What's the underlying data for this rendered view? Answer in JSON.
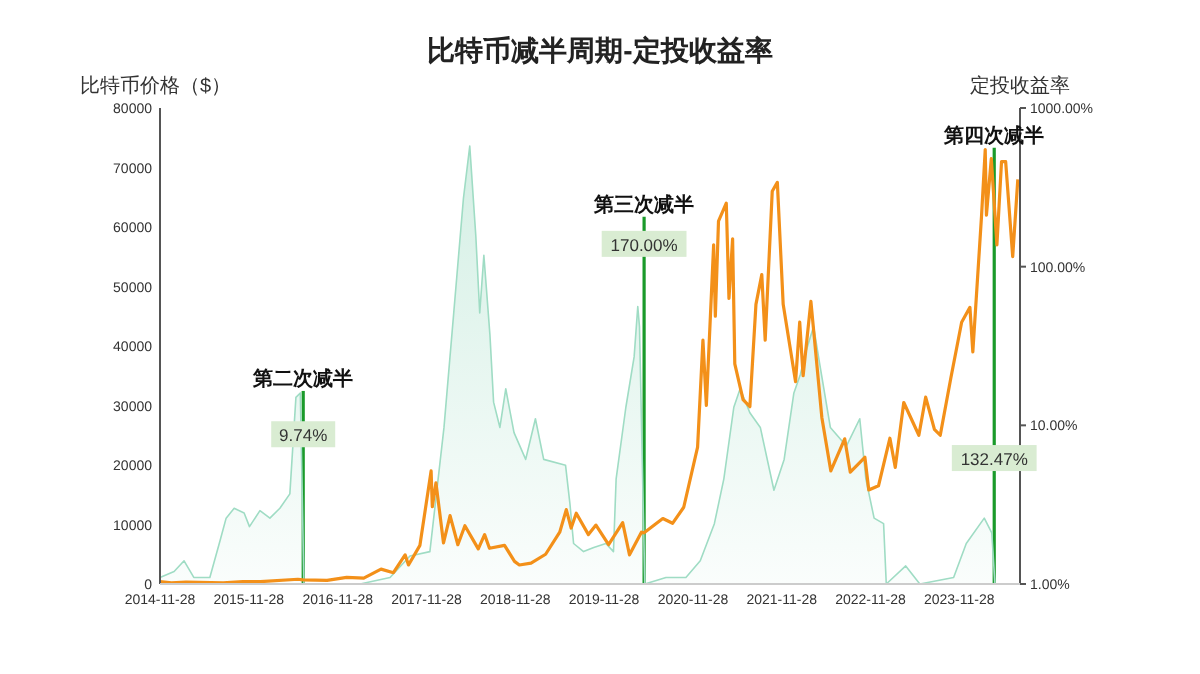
{
  "chart_data": {
    "type": "line",
    "title": "比特币减半周期-定投收益率",
    "ylabel": "比特币价格（$）",
    "y2label": "定投收益率",
    "log": "y2",
    "xlim": [
      "2014-11-28",
      "2024-08-04"
    ],
    "xticks": [
      "2014-11-28",
      "2015-11-28",
      "2016-11-28",
      "2017-11-28",
      "2018-11-28",
      "2019-11-28",
      "2020-11-28",
      "2021-11-28",
      "2022-11-28",
      "2023-11-28"
    ],
    "ylim": [
      0,
      80000
    ],
    "yticks": [
      0,
      10000,
      20000,
      30000,
      40000,
      50000,
      60000,
      70000,
      80000
    ],
    "y2lim": [
      1,
      1000
    ],
    "y2ticks": [
      {
        "value": 1,
        "label": "1.00%"
      },
      {
        "value": 10,
        "label": "10.00%"
      },
      {
        "value": 100,
        "label": "100.00%"
      },
      {
        "value": 1000,
        "label": "1000.00%"
      }
    ],
    "series": [
      {
        "type": "area",
        "axis": "y2",
        "color": "#9fdcc4",
        "x": [
          "2014-11-28",
          "2015-01-25",
          "2015-03-07",
          "2015-04-16",
          "2015-06-21",
          "2015-08-03",
          "2015-08-27",
          "2015-09-29",
          "2015-11-09",
          "2015-12-01",
          "2016-01-13",
          "2016-02-23",
          "2016-04-04",
          "2016-05-15",
          "2016-06-09",
          "2016-06-27",
          "2016-07-12",
          "2017-02-28",
          "2017-07-01",
          "2017-09-21",
          "2017-12-12",
          "2018-02-08",
          "2018-03-20",
          "2018-04-29",
          "2018-05-25",
          "2018-06-19",
          "2018-07-05",
          "2018-07-22",
          "2018-08-16",
          "2018-08-31",
          "2018-09-26",
          "2018-10-20",
          "2018-11-23",
          "2019-01-10",
          "2019-02-19",
          "2019-03-25",
          "2019-06-23",
          "2019-07-11",
          "2019-07-26",
          "2019-09-05",
          "2019-10-17",
          "2019-12-06",
          "2020-01-06",
          "2020-01-17",
          "2020-02-26",
          "2020-03-31",
          "2020-04-15",
          "2020-04-22",
          "2020-05-14",
          "2020-08-09",
          "2020-10-30",
          "2020-12-28",
          "2021-02-24",
          "2021-04-04",
          "2021-05-15",
          "2021-06-10",
          "2021-07-20",
          "2021-09-01",
          "2021-10-27",
          "2021-12-08",
          "2022-01-17",
          "2022-02-13",
          "2022-03-07",
          "2022-04-08",
          "2022-05-04",
          "2022-06-16",
          "2022-08-21",
          "2022-10-15",
          "2022-11-09",
          "2022-12-13",
          "2023-01-21",
          "2023-02-01",
          "2023-04-22",
          "2023-06-19",
          "2023-11-05",
          "2023-12-27",
          "2024-03-10",
          "2024-04-10",
          "2024-04-23",
          "2024-07-25"
        ],
        "values": [
          1.1,
          1.2,
          1.4,
          1.1,
          1.1,
          1.9,
          2.6,
          3.0,
          2.8,
          2.3,
          2.9,
          2.6,
          3.0,
          3.7,
          15,
          16,
          1.0,
          1.0,
          1.1,
          1.5,
          1.6,
          9.7,
          51,
          270,
          575,
          155,
          51,
          118,
          37,
          14,
          9.7,
          17,
          9.0,
          6.1,
          11,
          6.1,
          5.6,
          3.2,
          1.8,
          1.6,
          1.7,
          1.8,
          1.6,
          4.6,
          13,
          27,
          56,
          42,
          1.0,
          1.1,
          1.1,
          1.4,
          2.4,
          4.6,
          13,
          17,
          12,
          9.7,
          3.9,
          6.1,
          16,
          21,
          29,
          42,
          24,
          9.7,
          7.4,
          11,
          4.6,
          2.6,
          2.4,
          1.0,
          1.3,
          1.0,
          1.1,
          1.8,
          2.6,
          2.1,
          1.0,
          1.0
        ]
      },
      {
        "type": "line",
        "axis": "y",
        "color": "#f39019",
        "x": [
          "2014-11-28",
          "2015-01-14",
          "2015-03-15",
          "2015-08-15",
          "2015-11-04",
          "2016-01-15",
          "2016-06-17",
          "2016-07-09",
          "2016-10-15",
          "2017-01-04",
          "2017-03-15",
          "2017-05-25",
          "2017-07-15",
          "2017-09-01",
          "2017-09-15",
          "2017-11-01",
          "2017-12-17",
          "2017-12-22",
          "2018-01-06",
          "2018-02-06",
          "2018-03-05",
          "2018-04-06",
          "2018-05-05",
          "2018-06-29",
          "2018-07-25",
          "2018-08-14",
          "2018-10-15",
          "2018-11-25",
          "2018-12-15",
          "2019-02-01",
          "2019-04-02",
          "2019-05-30",
          "2019-06-26",
          "2019-07-16",
          "2019-08-06",
          "2019-09-25",
          "2019-10-26",
          "2019-12-17",
          "2020-02-13",
          "2020-03-12",
          "2020-04-30",
          "2020-05-11",
          "2020-07-27",
          "2020-09-05",
          "2020-10-21",
          "2020-12-17",
          "2021-01-08",
          "2021-01-22",
          "2021-02-21",
          "2021-02-28",
          "2021-03-13",
          "2021-04-14",
          "2021-04-25",
          "2021-05-10",
          "2021-05-19",
          "2021-06-22",
          "2021-07-20",
          "2021-08-14",
          "2021-09-07",
          "2021-09-21",
          "2021-10-20",
          "2021-11-10",
          "2021-12-04",
          "2022-01-24",
          "2022-02-10",
          "2022-02-24",
          "2022-03-28",
          "2022-05-12",
          "2022-06-18",
          "2022-08-14",
          "2022-09-06",
          "2022-11-05",
          "2022-11-21",
          "2022-12-31",
          "2023-02-16",
          "2023-03-10",
          "2023-04-14",
          "2023-06-15",
          "2023-07-13",
          "2023-08-18",
          "2023-09-11",
          "2023-10-24",
          "2023-12-08",
          "2024-01-11",
          "2024-01-23",
          "2024-02-28",
          "2024-03-14",
          "2024-03-19",
          "2024-04-08",
          "2024-05-01",
          "2024-05-20",
          "2024-06-06",
          "2024-07-05",
          "2024-07-26"
        ],
        "values": [
          400,
          200,
          300,
          200,
          400,
          400,
          800,
          700,
          600,
          1100,
          1000,
          2500,
          1900,
          4900,
          3200,
          6500,
          19000,
          13000,
          17000,
          6900,
          11500,
          6600,
          9800,
          5900,
          8300,
          6000,
          6500,
          3800,
          3200,
          3500,
          5000,
          8700,
          12500,
          9400,
          11900,
          8300,
          9900,
          6600,
          10300,
          4900,
          8700,
          8600,
          11000,
          10200,
          12900,
          23000,
          41000,
          30000,
          57000,
          45000,
          61000,
          64000,
          48000,
          58000,
          37000,
          31000,
          29800,
          47000,
          52000,
          41000,
          66000,
          67500,
          47000,
          34000,
          44000,
          35000,
          47500,
          28000,
          19000,
          24400,
          18800,
          21300,
          15800,
          16500,
          24500,
          19600,
          30500,
          25000,
          31400,
          26000,
          25000,
          34500,
          44000,
          46500,
          39000,
          62000,
          73000,
          62000,
          71500,
          57000,
          71000,
          71000,
          55000,
          68000
        ]
      }
    ],
    "ref_lines": [
      {
        "axis": "x",
        "value": "2016-07-09",
        "label": "第二次减半",
        "color": "#1a9a2a"
      },
      {
        "axis": "x",
        "value": "2020-05-11",
        "label": "第三次减半",
        "color": "#1a9a2a"
      },
      {
        "axis": "x",
        "value": "2024-04-20",
        "label": "第四次减半",
        "color": "#1a9a2a"
      }
    ],
    "annotations": [
      {
        "text": "9.74%",
        "x": "2016-07-09",
        "y": 25000
      },
      {
        "text": "170.00%",
        "x": "2020-05-11",
        "y": 57000
      },
      {
        "text": "132.47%",
        "x": "2024-04-20",
        "y": 21000
      }
    ]
  }
}
